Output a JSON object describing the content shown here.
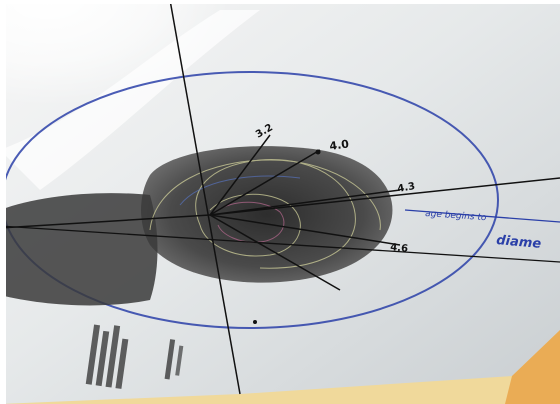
{
  "photo": {
    "subject": "paper-sheet",
    "colors": {
      "paper": "#e9ecec",
      "paper_shadow": "#b9c0c4",
      "glare": "#ffffff",
      "blob": "#3a3a3a",
      "blob_dark": "#222222",
      "blue_ink": "#2a3fa8",
      "black_ink": "#111111",
      "table": "#f0d99b"
    },
    "annotations": {
      "label_a": "4.0",
      "label_b": "3.2",
      "label_c": "4.3",
      "label_d": "4.6",
      "arrow_note": "age begins to",
      "diameter_note": "diame"
    }
  }
}
